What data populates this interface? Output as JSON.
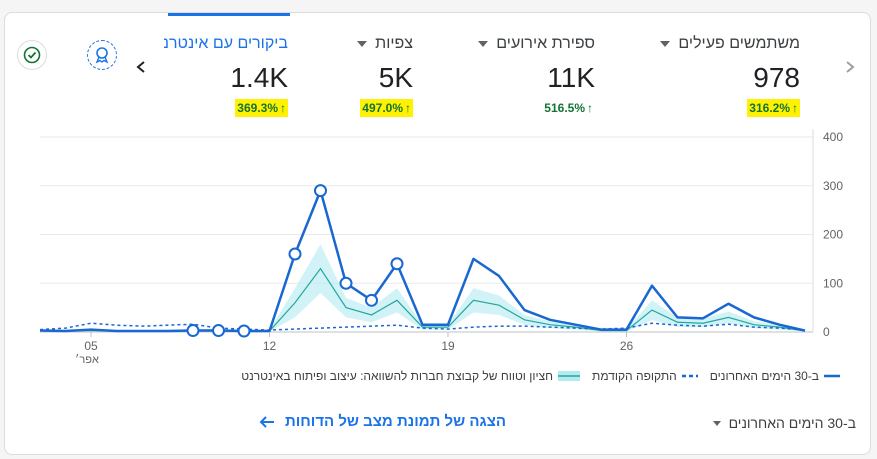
{
  "metrics": [
    {
      "label": "משתמשים פעילים",
      "value": "978",
      "change": "316.2%",
      "arrow": "↑"
    },
    {
      "label": "ספירת אירועים",
      "value": "11K",
      "change": "516.5%",
      "arrow": "↑"
    },
    {
      "label": "צפיות",
      "value": "5K",
      "change": "497.0%",
      "arrow": "↑"
    },
    {
      "label": "ביקורים עם אינטרנט",
      "value": "1.4K",
      "change": "369.3%",
      "arrow": "↑"
    }
  ],
  "legend": {
    "current": "ב-30 הימים האחרונים",
    "previous": "התקופה הקודמת",
    "benchmark": "חציון וטווח של קבוצת חברות להשוואה: עיצוב ופיתוח באינטרנט"
  },
  "footer": {
    "link_label": "הצגה של תמונת מצב של הדוחות",
    "range_label": "ב-30 הימים האחרונים"
  },
  "icons": {
    "next": "chevron-right-icon",
    "prev": "chevron-left-icon",
    "check": "check-circle-icon",
    "badge": "insights-badge-icon"
  },
  "colors": {
    "primary": "#1a73e8",
    "series_current": "#1967d2",
    "benchmark_line": "#26a69a",
    "benchmark_band": "#b2ebf2",
    "positive": "#137333",
    "highlight": "#fff200"
  },
  "chart_data": {
    "type": "line",
    "x": [
      "3",
      "4",
      "5",
      "6",
      "7",
      "8",
      "9",
      "10",
      "11",
      "12",
      "13",
      "14",
      "15",
      "16",
      "17",
      "18",
      "19",
      "20",
      "21",
      "22",
      "23",
      "24",
      "25",
      "26",
      "27",
      "28",
      "29",
      "30",
      "31",
      "1",
      "2"
    ],
    "x_tick_labels": [
      "05",
      "12",
      "19",
      "26"
    ],
    "x_tick_sublabel": "אפר׳",
    "y_ticks": [
      "400",
      "300",
      "200",
      "100",
      "0"
    ],
    "ylim": [
      0,
      400
    ],
    "series": [
      {
        "values": [
          3,
          2,
          5,
          2,
          2,
          2,
          3,
          3,
          2,
          2,
          160,
          290,
          100,
          65,
          140,
          15,
          15,
          150,
          115,
          45,
          25,
          15,
          5,
          5,
          95,
          30,
          28,
          58,
          30,
          15,
          3
        ]
      },
      {
        "values": [
          5,
          8,
          18,
          14,
          12,
          14,
          16,
          8,
          6,
          4,
          6,
          8,
          10,
          12,
          14,
          8,
          6,
          10,
          12,
          12,
          10,
          8,
          6,
          8,
          18,
          14,
          12,
          16,
          10,
          8,
          4
        ]
      }
    ],
    "benchmark": {
      "median": [
        3,
        2,
        3,
        2,
        2,
        2,
        3,
        3,
        2,
        2,
        60,
        130,
        50,
        35,
        65,
        10,
        10,
        65,
        55,
        25,
        15,
        10,
        3,
        3,
        45,
        20,
        18,
        30,
        15,
        10,
        2
      ],
      "low": [
        1,
        1,
        1,
        1,
        1,
        1,
        1,
        1,
        1,
        1,
        30,
        80,
        30,
        20,
        40,
        5,
        5,
        40,
        35,
        15,
        8,
        5,
        1,
        1,
        25,
        10,
        10,
        18,
        8,
        5,
        1
      ],
      "high": [
        5,
        4,
        6,
        4,
        4,
        4,
        6,
        6,
        4,
        4,
        90,
        180,
        70,
        50,
        90,
        15,
        15,
        90,
        75,
        35,
        22,
        15,
        6,
        6,
        65,
        30,
        28,
        42,
        22,
        15,
        4
      ]
    },
    "markers": [
      6,
      7,
      8,
      10,
      11,
      12,
      13,
      14
    ]
  }
}
